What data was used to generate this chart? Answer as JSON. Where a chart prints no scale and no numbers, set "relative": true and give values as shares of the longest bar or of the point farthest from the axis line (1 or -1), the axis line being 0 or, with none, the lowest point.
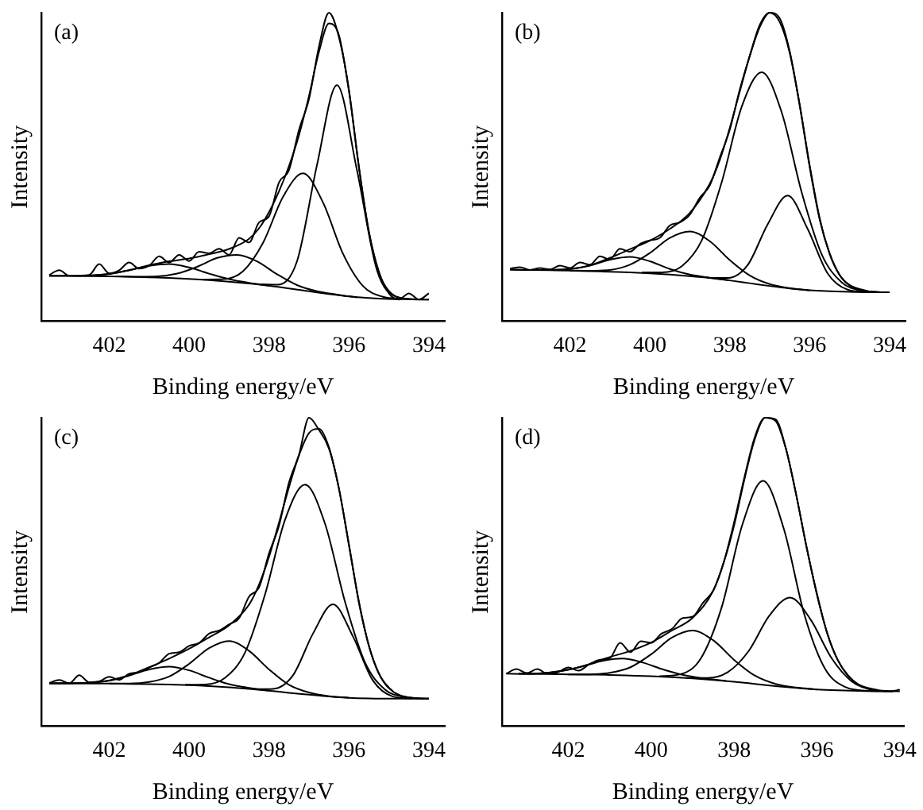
{
  "chart_data": [
    {
      "type": "line",
      "title": "(a)",
      "xlabel": "Binding energy/eV",
      "ylabel": "Intensity",
      "relative": true,
      "xlim": [
        403.7,
        393.6
      ],
      "xticks": [
        402,
        400,
        398,
        396,
        394
      ],
      "marker": "none",
      "legend": false,
      "grid": false,
      "series": [
        {
          "color": "#000000",
          "x": [
            403.5,
            403.25,
            403,
            402.5,
            402.25,
            402,
            401.75,
            401.5,
            401.25,
            401,
            400.75,
            400.5,
            400.25,
            400,
            399.75,
            399.5,
            399.25,
            399,
            398.75,
            398.5,
            398.25,
            398,
            397.75,
            397.5,
            397.25,
            397,
            396.75,
            396.5,
            396.25,
            396,
            395.75,
            395.5,
            395.25,
            395,
            394.75,
            394.5,
            394.25,
            394
          ],
          "values": [
            0.15,
            0.165,
            0.147,
            0.15,
            0.185,
            0.155,
            0.165,
            0.19,
            0.17,
            0.18,
            0.21,
            0.19,
            0.215,
            0.195,
            0.225,
            0.22,
            0.235,
            0.215,
            0.27,
            0.255,
            0.32,
            0.34,
            0.45,
            0.49,
            0.62,
            0.72,
            0.89,
            1.0,
            0.92,
            0.75,
            0.5,
            0.29,
            0.16,
            0.09,
            0.07,
            0.09,
            0.07,
            0.09
          ]
        },
        {
          "color": "#000000",
          "x": [
            403.5,
            403,
            402.5,
            402,
            401.5,
            401,
            400.5,
            400,
            399.5,
            399,
            398.5,
            398.25,
            398,
            397.75,
            397.5,
            397.25,
            397,
            396.75,
            396.5,
            396.25,
            396,
            395.75,
            395.5,
            395.25,
            395,
            394.5,
            394
          ],
          "values": [
            0.147,
            0.147,
            0.148,
            0.153,
            0.165,
            0.181,
            0.194,
            0.203,
            0.217,
            0.234,
            0.267,
            0.301,
            0.354,
            0.421,
            0.503,
            0.603,
            0.73,
            0.873,
            0.965,
            0.927,
            0.746,
            0.499,
            0.288,
            0.158,
            0.098,
            0.072,
            0.07
          ]
        },
        {
          "color": "#000000",
          "x": [
            403.5,
            403,
            402.5,
            402,
            401.5,
            401,
            400.5,
            400,
            399.5,
            399,
            398.5,
            398,
            397.5,
            397,
            396.5,
            396,
            395.5,
            395,
            394.5,
            394
          ],
          "values": [
            0.147,
            0.147,
            0.146,
            0.145,
            0.144,
            0.142,
            0.14,
            0.137,
            0.133,
            0.128,
            0.122,
            0.115,
            0.106,
            0.097,
            0.088,
            0.08,
            0.075,
            0.072,
            0.071,
            0.07
          ]
        },
        {
          "color": "#000000",
          "x": [
            398.3,
            397.8,
            397.3,
            396.8,
            396.3,
            395.8,
            395.3,
            394.8,
            394.3
          ],
          "values": [
            0.12,
            0.118,
            0.194,
            0.506,
            0.765,
            0.49,
            0.166,
            0.078,
            0.07
          ]
        },
        {
          "color": "#000000",
          "x": [
            399.65,
            399.15,
            398.65,
            398.15,
            397.65,
            397.15,
            396.65,
            396.15,
            395.65,
            395.15,
            394.65
          ],
          "values": [
            0.135,
            0.136,
            0.162,
            0.254,
            0.403,
            0.479,
            0.385,
            0.219,
            0.114,
            0.079,
            0.072
          ]
        },
        {
          "color": "#000000",
          "x": [
            401.8,
            401.3,
            400.8,
            400.3,
            399.8,
            399.3,
            398.8,
            398.3,
            397.8,
            397.3,
            396.8,
            396.3,
            395.8
          ],
          "values": [
            0.145,
            0.144,
            0.145,
            0.154,
            0.176,
            0.205,
            0.215,
            0.194,
            0.152,
            0.117,
            0.097,
            0.086,
            0.077
          ]
        },
        {
          "color": "#000000",
          "x": [
            403.5,
            403,
            402.5,
            402,
            401.5,
            401,
            400.5,
            400,
            399.5,
            399,
            398.5,
            398
          ],
          "values": [
            0.147,
            0.147,
            0.148,
            0.153,
            0.165,
            0.179,
            0.185,
            0.174,
            0.154,
            0.136,
            0.124,
            0.115
          ]
        }
      ]
    },
    {
      "type": "line",
      "title": "(b)",
      "xlabel": "Binding energy/eV",
      "ylabel": "Intensity",
      "relative": true,
      "xlim": [
        403.7,
        393.6
      ],
      "xticks": [
        402,
        400,
        398,
        396,
        394
      ],
      "marker": "none",
      "legend": false,
      "grid": false,
      "series": [
        {
          "color": "#000000",
          "x": [
            403.5,
            403.25,
            403,
            402.75,
            402.5,
            402.25,
            402,
            401.75,
            401.5,
            401.25,
            401,
            400.75,
            400.5,
            400.25,
            400,
            399.75,
            399.5,
            399.25,
            399,
            398.75,
            398.5,
            398.25,
            398,
            397.75,
            397.5,
            397.25,
            397,
            396.75,
            396.5,
            396.25,
            396,
            395.75,
            395.5,
            395.25,
            395,
            394.75,
            394.5,
            394.25,
            394
          ],
          "values": [
            0.17,
            0.175,
            0.166,
            0.172,
            0.168,
            0.18,
            0.172,
            0.19,
            0.183,
            0.21,
            0.2,
            0.235,
            0.225,
            0.25,
            0.262,
            0.27,
            0.31,
            0.32,
            0.345,
            0.4,
            0.44,
            0.53,
            0.62,
            0.75,
            0.86,
            0.96,
            1.0,
            0.97,
            0.87,
            0.7,
            0.5,
            0.33,
            0.22,
            0.15,
            0.115,
            0.1,
            0.096,
            0.094,
            0.094
          ]
        },
        {
          "color": "#000000",
          "x": [
            403,
            402.5,
            402,
            401.5,
            401,
            400.5,
            400,
            399.5,
            399,
            398.5,
            398.25,
            398,
            397.75,
            397.5,
            397.25,
            397,
            396.75,
            396.5,
            396.25,
            396,
            395.75,
            395.5,
            395.25,
            395,
            394.5
          ],
          "values": [
            0.166,
            0.166,
            0.169,
            0.181,
            0.205,
            0.233,
            0.261,
            0.299,
            0.351,
            0.445,
            0.522,
            0.626,
            0.744,
            0.859,
            0.953,
            1.0,
            0.982,
            0.876,
            0.703,
            0.506,
            0.335,
            0.218,
            0.149,
            0.117,
            0.096
          ]
        },
        {
          "color": "#000000",
          "x": [
            403.5,
            403,
            402.5,
            402,
            401.5,
            401,
            400.5,
            400,
            399.5,
            399,
            398.5,
            398,
            397.5,
            397,
            396.5,
            396,
            395.5,
            395,
            394.5,
            394
          ],
          "values": [
            0.167,
            0.166,
            0.165,
            0.164,
            0.162,
            0.16,
            0.158,
            0.155,
            0.151,
            0.146,
            0.14,
            0.132,
            0.123,
            0.114,
            0.106,
            0.1,
            0.097,
            0.095,
            0.094,
            0.094
          ]
        },
        {
          "color": "#000000",
          "x": [
            400.2,
            399.7,
            399.2,
            398.7,
            398.2,
            397.7,
            397.2,
            396.7,
            396.2,
            395.7,
            395.2,
            394.7,
            394.2
          ],
          "values": [
            0.158,
            0.158,
            0.178,
            0.262,
            0.451,
            0.695,
            0.807,
            0.677,
            0.418,
            0.217,
            0.126,
            0.099,
            0.094
          ]
        },
        {
          "color": "#000000",
          "x": [
            398.55,
            398.05,
            397.55,
            397.05,
            396.55,
            396.05,
            395.55,
            395.05,
            394.55
          ],
          "values": [
            0.14,
            0.14,
            0.182,
            0.314,
            0.407,
            0.299,
            0.155,
            0.102,
            0.094
          ]
        },
        {
          "color": "#000000",
          "x": [
            402,
            401.5,
            401,
            400.5,
            400,
            399.5,
            399,
            398.5,
            398,
            397.5,
            397,
            396.5,
            396
          ],
          "values": [
            0.164,
            0.163,
            0.166,
            0.183,
            0.221,
            0.27,
            0.291,
            0.259,
            0.198,
            0.148,
            0.12,
            0.107,
            0.1
          ]
        },
        {
          "color": "#000000",
          "x": [
            403.5,
            403,
            402.5,
            402,
            401.5,
            401,
            400.5,
            400,
            399.5,
            399,
            398.5,
            398
          ],
          "values": [
            0.167,
            0.166,
            0.166,
            0.169,
            0.18,
            0.199,
            0.208,
            0.194,
            0.169,
            0.151,
            0.141,
            0.132
          ]
        }
      ]
    },
    {
      "type": "line",
      "title": "(c)",
      "xlabel": "Binding energy/eV",
      "ylabel": "Intensity",
      "relative": true,
      "xlim": [
        403.7,
        393.6
      ],
      "xticks": [
        402,
        400,
        398,
        396,
        394
      ],
      "marker": "none",
      "legend": false,
      "grid": false,
      "series": [
        {
          "color": "#000000",
          "x": [
            403.5,
            403.25,
            403,
            402.75,
            402.5,
            402.25,
            402,
            401.75,
            401.5,
            401.25,
            401,
            400.75,
            400.5,
            400.25,
            400,
            399.75,
            399.5,
            399.25,
            399,
            398.75,
            398.5,
            398.25,
            398,
            397.75,
            397.5,
            397.25,
            397,
            396.75,
            396.5,
            396.25,
            396,
            395.75,
            395.5,
            395.25,
            395,
            394.75,
            394.5,
            394.25,
            394
          ],
          "values": [
            0.14,
            0.15,
            0.139,
            0.165,
            0.142,
            0.145,
            0.16,
            0.15,
            0.17,
            0.175,
            0.19,
            0.205,
            0.235,
            0.24,
            0.26,
            0.27,
            0.3,
            0.31,
            0.33,
            0.35,
            0.42,
            0.45,
            0.56,
            0.65,
            0.79,
            0.88,
            1.0,
            0.96,
            0.9,
            0.77,
            0.59,
            0.4,
            0.26,
            0.17,
            0.125,
            0.1,
            0.093,
            0.09,
            0.089
          ]
        },
        {
          "color": "#000000",
          "x": [
            403.5,
            403,
            402.5,
            402,
            401.5,
            401,
            400.5,
            400,
            399.5,
            399,
            398.5,
            398.25,
            398,
            397.75,
            397.5,
            397.25,
            397,
            396.75,
            396.5,
            396.25,
            396,
            395.75,
            395.5,
            395.25,
            395,
            394.5,
            394
          ],
          "values": [
            0.139,
            0.139,
            0.141,
            0.148,
            0.165,
            0.191,
            0.219,
            0.251,
            0.288,
            0.327,
            0.394,
            0.459,
            0.549,
            0.66,
            0.775,
            0.878,
            0.95,
            0.964,
            0.904,
            0.77,
            0.586,
            0.404,
            0.261,
            0.171,
            0.123,
            0.093,
            0.089
          ]
        },
        {
          "color": "#000000",
          "x": [
            403.5,
            403,
            402.5,
            402,
            401.5,
            401,
            400.5,
            400,
            399.5,
            399,
            398.5,
            398,
            397.5,
            397,
            396.5,
            396,
            395.5,
            395,
            394.5,
            394
          ],
          "values": [
            0.139,
            0.139,
            0.138,
            0.138,
            0.137,
            0.136,
            0.135,
            0.133,
            0.13,
            0.126,
            0.121,
            0.115,
            0.108,
            0.102,
            0.096,
            0.092,
            0.09,
            0.089,
            0.089,
            0.089
          ]
        },
        {
          "color": "#000000",
          "x": [
            400.1,
            399.6,
            399.1,
            398.6,
            398.1,
            397.6,
            397.1,
            396.6,
            396.1,
            395.6,
            395.1,
            394.6,
            394.1
          ],
          "values": [
            0.134,
            0.135,
            0.157,
            0.239,
            0.427,
            0.669,
            0.783,
            0.657,
            0.404,
            0.207,
            0.119,
            0.094,
            0.089
          ]
        },
        {
          "color": "#000000",
          "x": [
            398.4,
            397.9,
            397.4,
            396.9,
            396.4,
            395.9,
            395.4,
            394.9,
            394.4
          ],
          "values": [
            0.12,
            0.121,
            0.165,
            0.3,
            0.395,
            0.291,
            0.148,
            0.096,
            0.089
          ]
        },
        {
          "color": "#000000",
          "x": [
            402,
            401.5,
            401,
            400.5,
            400,
            399.5,
            399,
            398.5,
            398,
            397.5,
            397,
            396.5,
            396
          ],
          "values": [
            0.138,
            0.138,
            0.143,
            0.161,
            0.202,
            0.253,
            0.276,
            0.244,
            0.184,
            0.134,
            0.109,
            0.097,
            0.092
          ]
        },
        {
          "color": "#000000",
          "x": [
            403.5,
            403,
            402.5,
            402,
            401.5,
            401,
            400.5,
            400,
            399.5,
            399,
            398.5,
            398
          ],
          "values": [
            0.139,
            0.139,
            0.141,
            0.148,
            0.164,
            0.184,
            0.193,
            0.181,
            0.157,
            0.136,
            0.124,
            0.115
          ]
        }
      ]
    },
    {
      "type": "line",
      "title": "(d)",
      "xlabel": "Binding energy/eV",
      "ylabel": "Intensity",
      "relative": true,
      "xlim": [
        403.6,
        393.9
      ],
      "xticks": [
        402,
        400,
        398,
        396,
        394
      ],
      "marker": "none",
      "legend": false,
      "grid": false,
      "series": [
        {
          "color": "#000000",
          "x": [
            403.5,
            403.25,
            403,
            402.75,
            402.5,
            402.25,
            402,
            401.75,
            401.5,
            401.25,
            401,
            400.75,
            400.5,
            400.25,
            400,
            399.75,
            399.5,
            399.25,
            399,
            398.75,
            398.5,
            398.25,
            398,
            397.75,
            397.5,
            397.25,
            397,
            396.75,
            396.5,
            396.25,
            396,
            395.75,
            395.5,
            395.25,
            395,
            394.75,
            394.5,
            394.25,
            394
          ],
          "values": [
            0.17,
            0.185,
            0.172,
            0.185,
            0.17,
            0.175,
            0.19,
            0.18,
            0.2,
            0.215,
            0.22,
            0.27,
            0.24,
            0.275,
            0.27,
            0.3,
            0.315,
            0.35,
            0.355,
            0.4,
            0.44,
            0.53,
            0.65,
            0.8,
            0.93,
            1.0,
            0.99,
            0.9,
            0.75,
            0.58,
            0.43,
            0.3,
            0.215,
            0.165,
            0.135,
            0.12,
            0.115,
            0.113,
            0.118
          ]
        },
        {
          "color": "#000000",
          "x": [
            403,
            402.5,
            402,
            401.5,
            401,
            400.5,
            400,
            399.5,
            399,
            398.5,
            398.25,
            398,
            397.75,
            397.5,
            397.25,
            397,
            396.75,
            396.5,
            396.25,
            396,
            395.75,
            395.5,
            395.25,
            395,
            394.5
          ],
          "values": [
            0.17,
            0.173,
            0.183,
            0.201,
            0.224,
            0.244,
            0.271,
            0.31,
            0.351,
            0.44,
            0.531,
            0.66,
            0.807,
            0.937,
            1.0,
            0.995,
            0.901,
            0.75,
            0.581,
            0.426,
            0.301,
            0.215,
            0.163,
            0.135,
            0.116
          ]
        },
        {
          "color": "#000000",
          "x": [
            403.5,
            403,
            402.5,
            402,
            401.5,
            401,
            400.5,
            400,
            399.5,
            399,
            398.5,
            398,
            397.5,
            397,
            396.5,
            396,
            395.5,
            395,
            394.5,
            394
          ],
          "values": [
            0.17,
            0.169,
            0.169,
            0.168,
            0.167,
            0.166,
            0.164,
            0.162,
            0.159,
            0.155,
            0.15,
            0.144,
            0.137,
            0.13,
            0.124,
            0.119,
            0.116,
            0.114,
            0.113,
            0.113
          ]
        },
        {
          "color": "#000000",
          "x": [
            399.8,
            399.3,
            398.8,
            398.3,
            397.8,
            397.3,
            396.8,
            396.3,
            395.8,
            395.3,
            394.8,
            394.3
          ],
          "values": [
            0.162,
            0.168,
            0.22,
            0.385,
            0.653,
            0.795,
            0.64,
            0.36,
            0.185,
            0.126,
            0.115,
            0.113
          ]
        },
        {
          "color": "#000000",
          "x": [
            399.15,
            398.65,
            398.15,
            397.65,
            397.15,
            396.65,
            396.15,
            395.65,
            395.15,
            394.65,
            394.15
          ],
          "values": [
            0.156,
            0.156,
            0.175,
            0.243,
            0.358,
            0.417,
            0.345,
            0.221,
            0.144,
            0.118,
            0.113
          ]
        },
        {
          "color": "#000000",
          "x": [
            402,
            401.5,
            401,
            400.5,
            400,
            399.5,
            399,
            398.5,
            398,
            397.5,
            397,
            396.5,
            396
          ],
          "values": [
            0.168,
            0.168,
            0.173,
            0.191,
            0.233,
            0.287,
            0.31,
            0.278,
            0.215,
            0.164,
            0.137,
            0.125,
            0.119
          ]
        },
        {
          "color": "#000000",
          "x": [
            403.2,
            402.7,
            402.2,
            401.7,
            401.2,
            400.7,
            400.2,
            399.7,
            399.2,
            398.7,
            398.2
          ],
          "values": [
            0.17,
            0.171,
            0.178,
            0.192,
            0.211,
            0.219,
            0.206,
            0.183,
            0.165,
            0.154,
            0.147
          ]
        }
      ]
    }
  ]
}
